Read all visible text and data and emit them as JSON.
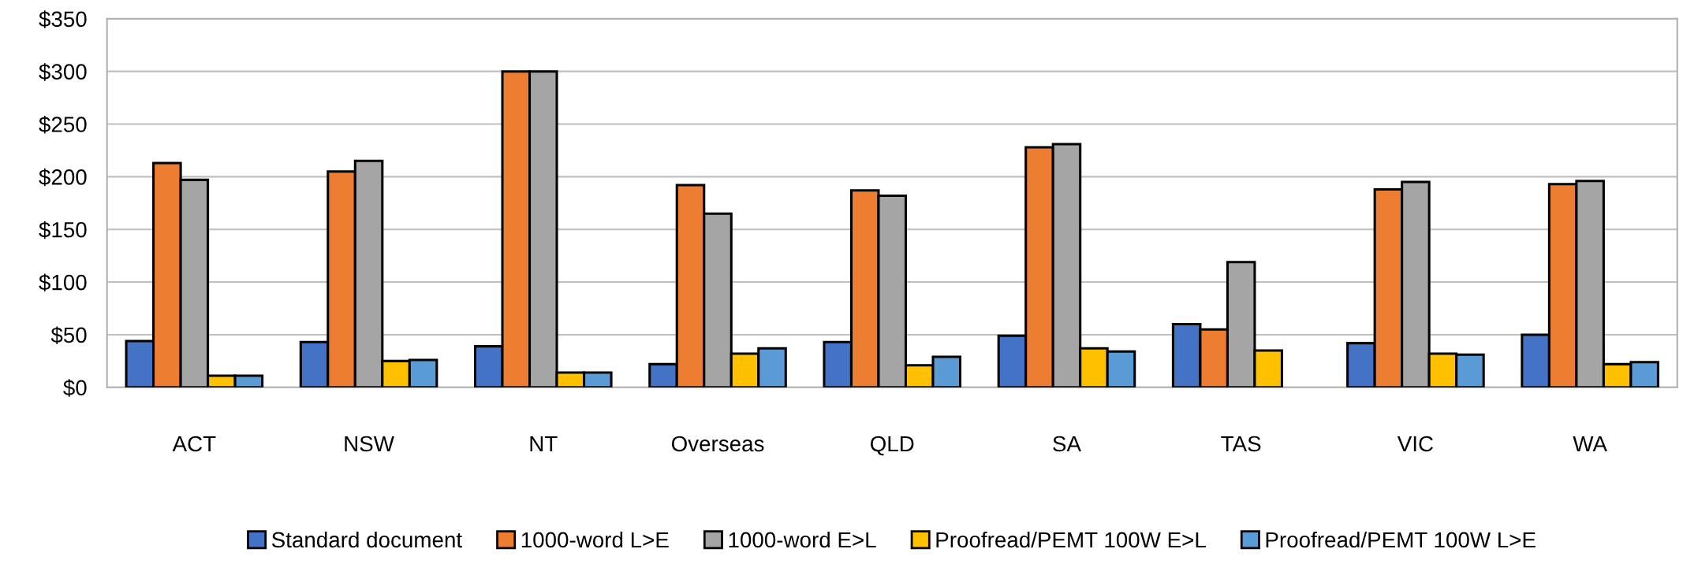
{
  "chart_data": {
    "type": "bar",
    "categories": [
      "ACT",
      "NSW",
      "NT",
      "Overseas",
      "QLD",
      "SA",
      "TAS",
      "VIC",
      "WA"
    ],
    "series": [
      {
        "name": "Standard document",
        "color": "#4472c4",
        "values": [
          44,
          43,
          39,
          22,
          43,
          49,
          60,
          42,
          50
        ]
      },
      {
        "name": "1000-word L>E",
        "color": "#ed7d31",
        "values": [
          213,
          205,
          300,
          192,
          187,
          228,
          55,
          188,
          193
        ]
      },
      {
        "name": "1000-word E>L",
        "color": "#a5a5a5",
        "values": [
          197,
          215,
          300,
          165,
          182,
          231,
          119,
          195,
          196
        ]
      },
      {
        "name": "Proofread/PEMT 100W E>L",
        "color": "#ffc000",
        "values": [
          11,
          25,
          14,
          32,
          21,
          37,
          35,
          32,
          22
        ]
      },
      {
        "name": "Proofread/PEMT 100W L>E",
        "color": "#5b9bd5",
        "values": [
          11,
          26,
          14,
          37,
          29,
          34,
          null,
          31,
          24
        ]
      }
    ],
    "ylim": [
      0,
      350
    ],
    "yticks": [
      {
        "value": 0,
        "label": "$0"
      },
      {
        "value": 50,
        "label": "$50"
      },
      {
        "value": 100,
        "label": "$100"
      },
      {
        "value": 150,
        "label": "$150"
      },
      {
        "value": 200,
        "label": "$200"
      },
      {
        "value": 250,
        "label": "$250"
      },
      {
        "value": 300,
        "label": "$300"
      },
      {
        "value": 350,
        "label": "$350"
      }
    ],
    "grid": "y",
    "legend": "bottom"
  }
}
